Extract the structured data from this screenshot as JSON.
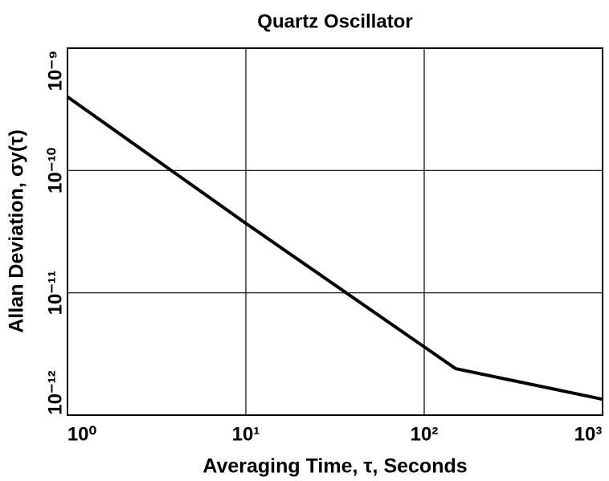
{
  "chart_data": {
    "type": "line",
    "title": "Quartz Oscillator",
    "xlabel": "Averaging Time, τ, Seconds",
    "ylabel": "Allan Deviation, σy(τ)",
    "x": [
      1,
      10,
      150,
      1000
    ],
    "series": [
      {
        "name": "Quartz Oscillator",
        "color": "#000000",
        "values": [
          4e-10,
          3.7e-11,
          2.4e-12,
          1.35e-12
        ]
      }
    ],
    "xscale": "log",
    "yscale": "log",
    "xlim": [
      1,
      1000
    ],
    "xticks": [
      {
        "value": 1,
        "label": "10⁰"
      },
      {
        "value": 10,
        "label": "10¹"
      },
      {
        "value": 100,
        "label": "10²"
      },
      {
        "value": 1000,
        "label": "10³"
      }
    ],
    "ylim": [
      1e-12,
      1e-09
    ],
    "yticks": [
      {
        "value": 1e-12,
        "label": "10⁻¹²"
      },
      {
        "value": 1e-11,
        "label": "10⁻¹¹"
      },
      {
        "value": 1e-10,
        "label": "10⁻¹⁰"
      },
      {
        "value": 1e-09,
        "label": "10⁻⁹"
      }
    ],
    "grid": true
  }
}
